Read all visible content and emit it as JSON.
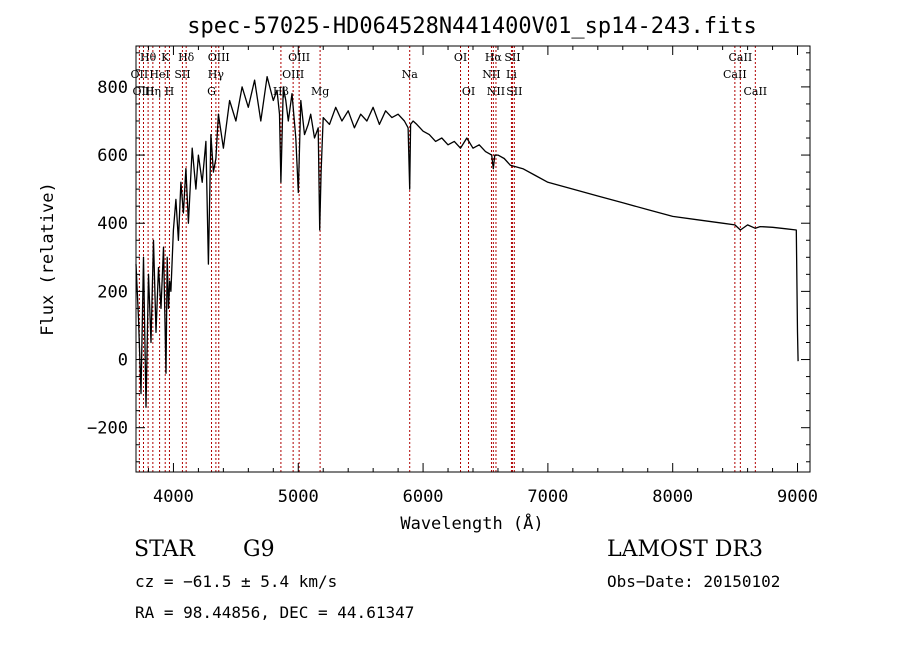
{
  "chart_data": {
    "type": "line",
    "title": "spec-57025-HD064528N441400V01_sp14-243.fits",
    "xlabel": "Wavelength (Å)",
    "ylabel": "Flux (relative)",
    "xlim": [
      3700,
      9100
    ],
    "ylim": [
      -330,
      920
    ],
    "x_ticks": [
      4000,
      5000,
      6000,
      7000,
      8000,
      9000
    ],
    "y_ticks": [
      -200,
      0,
      200,
      400,
      600,
      800
    ],
    "x_tick_labels": [
      "4000",
      "5000",
      "6000",
      "7000",
      "8000",
      "9000"
    ],
    "y_tick_labels": [
      "−200",
      "0",
      "200",
      "400",
      "600",
      "800"
    ],
    "grid": false,
    "series": [
      {
        "name": "spectrum",
        "color": "#000000",
        "x": [
          3700,
          3720,
          3740,
          3760,
          3780,
          3800,
          3820,
          3840,
          3860,
          3880,
          3900,
          3920,
          3940,
          3950,
          3960,
          3970,
          3980,
          4000,
          4020,
          4040,
          4060,
          4080,
          4100,
          4120,
          4150,
          4180,
          4200,
          4230,
          4260,
          4280,
          4300,
          4320,
          4340,
          4360,
          4400,
          4450,
          4500,
          4550,
          4600,
          4650,
          4700,
          4750,
          4800,
          4830,
          4850,
          4861,
          4880,
          4900,
          4920,
          4950,
          4980,
          5000,
          5020,
          5050,
          5080,
          5100,
          5130,
          5160,
          5172,
          5183,
          5200,
          5250,
          5300,
          5350,
          5400,
          5450,
          5500,
          5550,
          5600,
          5650,
          5700,
          5750,
          5800,
          5850,
          5880,
          5893,
          5900,
          5920,
          5950,
          6000,
          6050,
          6100,
          6150,
          6200,
          6250,
          6300,
          6350,
          6400,
          6450,
          6500,
          6550,
          6563,
          6575,
          6600,
          6650,
          6700,
          6800,
          6900,
          7000,
          7200,
          7400,
          7600,
          7800,
          8000,
          8200,
          8400,
          8498,
          8542,
          8600,
          8662,
          8700,
          8800,
          8900,
          8990,
          9000,
          9005
        ],
        "y": [
          280,
          120,
          -100,
          300,
          -140,
          250,
          50,
          350,
          80,
          270,
          150,
          330,
          -40,
          300,
          150,
          230,
          200,
          380,
          470,
          350,
          520,
          430,
          560,
          400,
          620,
          500,
          600,
          520,
          640,
          280,
          660,
          550,
          590,
          720,
          620,
          760,
          700,
          800,
          740,
          820,
          700,
          830,
          760,
          790,
          720,
          520,
          800,
          760,
          700,
          780,
          650,
          490,
          760,
          660,
          690,
          720,
          650,
          680,
          380,
          550,
          710,
          690,
          740,
          700,
          730,
          680,
          720,
          700,
          740,
          690,
          730,
          710,
          720,
          700,
          680,
          500,
          690,
          700,
          690,
          670,
          660,
          640,
          650,
          630,
          640,
          620,
          650,
          620,
          630,
          610,
          600,
          560,
          600,
          600,
          590,
          570,
          560,
          540,
          520,
          500,
          480,
          460,
          440,
          420,
          410,
          400,
          395,
          380,
          395,
          385,
          390,
          388,
          384,
          380,
          80,
          -5
        ]
      }
    ],
    "lines": [
      {
        "label": "Hθ",
        "wavelength": 3797,
        "row": 1
      },
      {
        "label": "K",
        "wavelength": 3934,
        "row": 1
      },
      {
        "label": "Hδ",
        "wavelength": 4102,
        "row": 1
      },
      {
        "label": "OIII",
        "wavelength": 4363,
        "row": 1
      },
      {
        "label": "OIII",
        "wavelength": 5007,
        "row": 1
      },
      {
        "label": "OI",
        "wavelength": 6300,
        "row": 1
      },
      {
        "label": "Hα",
        "wavelength": 6563,
        "row": 1
      },
      {
        "label": "SII",
        "wavelength": 6716,
        "row": 1
      },
      {
        "label": "CaII",
        "wavelength": 8542,
        "row": 1
      },
      {
        "label": "OII",
        "wavelength": 3727,
        "row": 2
      },
      {
        "label": "HeI",
        "wavelength": 3889,
        "row": 2
      },
      {
        "label": "SII",
        "wavelength": 4072,
        "row": 2
      },
      {
        "label": "Hγ",
        "wavelength": 4340,
        "row": 2
      },
      {
        "label": "OIII",
        "wavelength": 4959,
        "row": 2
      },
      {
        "label": "Na",
        "wavelength": 5893,
        "row": 2
      },
      {
        "label": "NII",
        "wavelength": 6548,
        "row": 2
      },
      {
        "label": "Li",
        "wavelength": 6708,
        "row": 2
      },
      {
        "label": "CaII",
        "wavelength": 8498,
        "row": 2
      },
      {
        "label": "OIII",
        "wavelength": 3760,
        "row": 3
      },
      {
        "label": "Hη",
        "wavelength": 3835,
        "row": 3
      },
      {
        "label": "H",
        "wavelength": 3968,
        "row": 3
      },
      {
        "label": "G",
        "wavelength": 4305,
        "row": 3
      },
      {
        "label": "Hβ",
        "wavelength": 4861,
        "row": 3
      },
      {
        "label": "Mg",
        "wavelength": 5175,
        "row": 3
      },
      {
        "label": "OI",
        "wavelength": 6364,
        "row": 3
      },
      {
        "label": "NII",
        "wavelength": 6584,
        "row": 3
      },
      {
        "label": "SII",
        "wavelength": 6731,
        "row": 3
      },
      {
        "label": "CaII",
        "wavelength": 8662,
        "row": 3
      }
    ]
  },
  "info": {
    "object_class": "STAR",
    "subclass": "G9",
    "survey": "LAMOST DR3",
    "redshift": "cz = −61.5 ± 5.4 km/s",
    "obs_date": "Obs−Date: 20150102",
    "coords": "RA =  98.44856, DEC =  44.61347"
  }
}
